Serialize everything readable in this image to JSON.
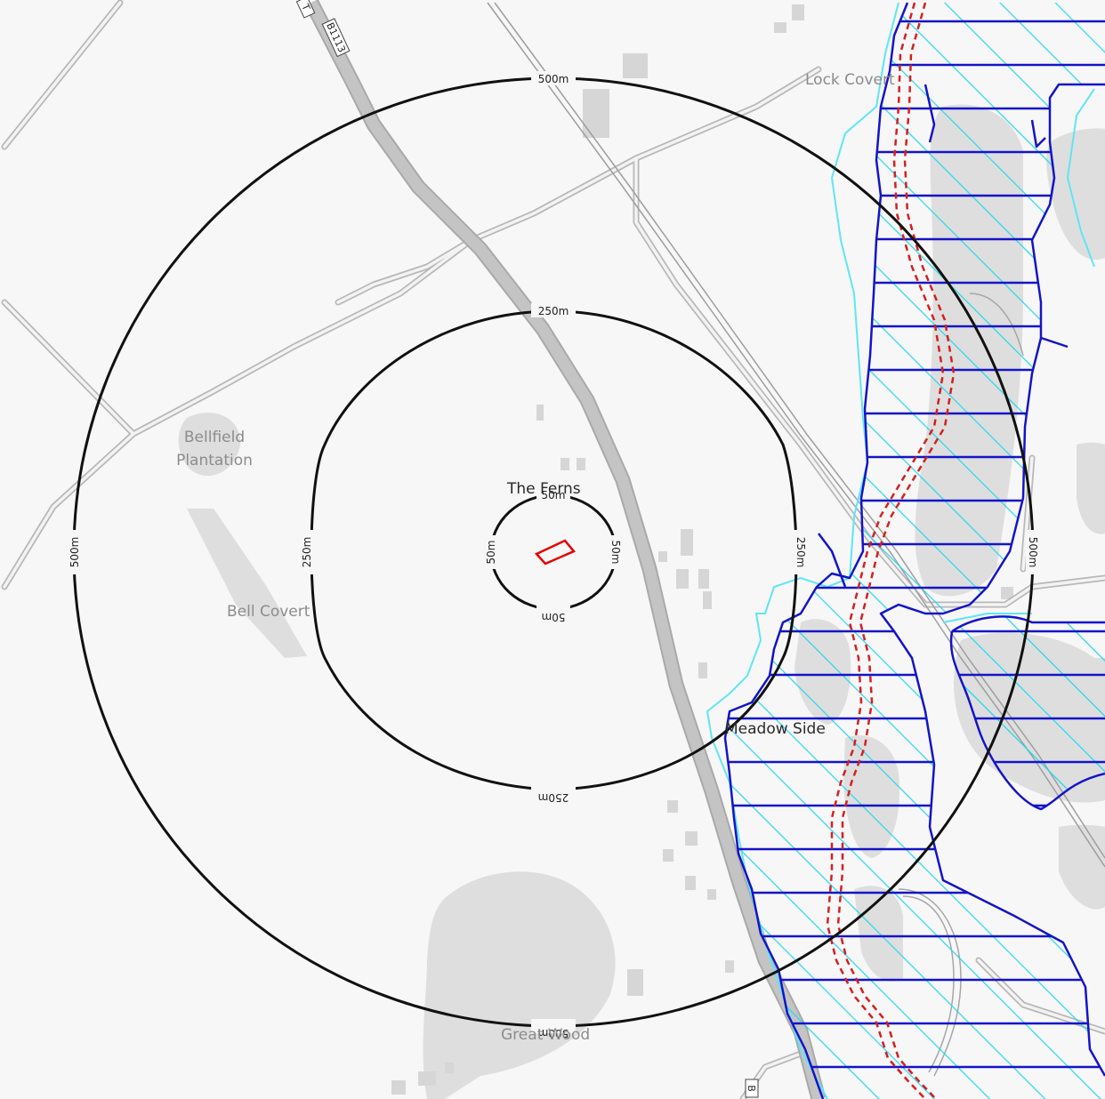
{
  "map": {
    "places": {
      "lock_covert": "Lock Covert",
      "bellfield": [
        "Bellfield",
        "Plantation"
      ],
      "the_ferns": "The Ferns",
      "bell_covert": "Bell Covert",
      "meadow_side": "Meadow Side",
      "great_wood": "Great Wood"
    },
    "roads": {
      "b1113": "B1113",
      "b_edge": "B",
      "t_edge": "T"
    },
    "buffers": {
      "r50": "50m",
      "r250": "250m",
      "r500": "500m"
    },
    "colors": {
      "background": "#f7f7f7",
      "road_major": "#b9b9b9",
      "road_minor": "#c9c9c9",
      "woodland": "#dedede",
      "site": "#e60000",
      "buffer": "#111111",
      "flood_zone_outline": "#1414c8",
      "flood_zone_hatch": "#22d6f0",
      "flood_zone_outer": "#6ee8f5",
      "watercourse": "#d42020"
    }
  }
}
